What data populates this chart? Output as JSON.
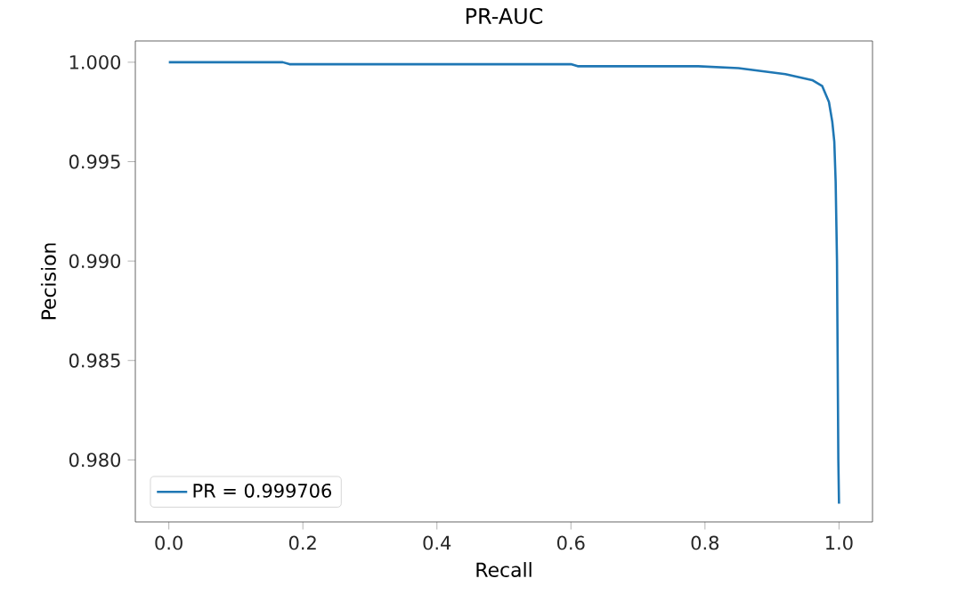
{
  "chart_data": {
    "type": "line",
    "title": "PR-AUC",
    "xlabel": "Recall",
    "ylabel": "Pecision",
    "xlim": [
      -0.05,
      1.05
    ],
    "ylim": [
      0.97688,
      1.00107
    ],
    "xticks": [
      {
        "value": 0,
        "label": "0.0"
      },
      {
        "value": 0.2,
        "label": "0.2"
      },
      {
        "value": 0.4,
        "label": "0.4"
      },
      {
        "value": 0.6,
        "label": "0.6"
      },
      {
        "value": 0.8,
        "label": "0.8"
      },
      {
        "value": 1,
        "label": "1.0"
      }
    ],
    "yticks": [
      {
        "value": 0.98,
        "label": "0.980"
      },
      {
        "value": 0.985,
        "label": "0.985"
      },
      {
        "value": 0.99,
        "label": "0.990"
      },
      {
        "value": 0.995,
        "label": "0.995"
      },
      {
        "value": 1,
        "label": "1.000"
      }
    ],
    "legend": "bottom left",
    "grid": false,
    "series": [
      {
        "name": "PR = 0.999706",
        "color": "#1f77b4",
        "x": [
          0,
          0.17,
          0.18,
          0.6,
          0.61,
          0.79,
          0.85,
          0.92,
          0.96,
          0.975,
          0.985,
          0.99,
          0.993,
          0.995,
          0.997,
          0.998,
          0.999,
          1.0
        ],
        "values": [
          1.0,
          1.0,
          0.9999,
          0.9999,
          0.9998,
          0.9998,
          0.9997,
          0.9994,
          0.9991,
          0.9988,
          0.998,
          0.997,
          0.996,
          0.994,
          0.99,
          0.985,
          0.98,
          0.9778
        ]
      }
    ]
  }
}
